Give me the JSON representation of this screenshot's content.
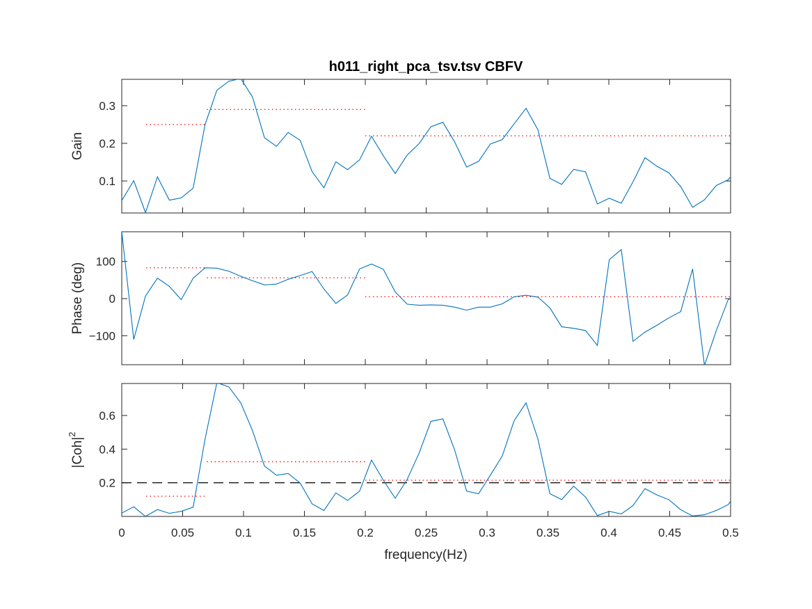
{
  "figure": {
    "title": "h011_right_pca_tsv.tsv CBFV",
    "xlabel": "frequency(Hz)"
  },
  "colors": {
    "series": "#0072BD",
    "bands": "#FF0000",
    "threshold": "#000000",
    "axes": "#262626"
  },
  "chart_data": [
    {
      "type": "line",
      "ylabel": "Gain",
      "xlim": [
        0,
        0.5
      ],
      "ylim": [
        0.015,
        0.37
      ],
      "yticks": [
        0.1,
        0.2,
        0.3
      ],
      "ytick_labels": [
        "0.1",
        "0.2",
        "0.3"
      ],
      "show_xtick_labels": false,
      "x": [
        0,
        0.0098,
        0.0195,
        0.0293,
        0.0391,
        0.0488,
        0.0586,
        0.0684,
        0.0781,
        0.0879,
        0.0977,
        0.1074,
        0.1172,
        0.127,
        0.1367,
        0.1465,
        0.1563,
        0.166,
        0.1758,
        0.1855,
        0.1953,
        0.2051,
        0.2148,
        0.2246,
        0.2344,
        0.2441,
        0.2539,
        0.2637,
        0.2734,
        0.2832,
        0.293,
        0.3027,
        0.3125,
        0.3223,
        0.332,
        0.3418,
        0.3516,
        0.3613,
        0.3711,
        0.3809,
        0.3906,
        0.4004,
        0.4102,
        0.4199,
        0.4297,
        0.4395,
        0.4492,
        0.459,
        0.4688,
        0.4785,
        0.4883,
        0.498,
        0.5
      ],
      "y": [
        0.048,
        0.101,
        0.016,
        0.111,
        0.049,
        0.055,
        0.081,
        0.25,
        0.341,
        0.365,
        0.372,
        0.323,
        0.215,
        0.192,
        0.229,
        0.208,
        0.125,
        0.082,
        0.151,
        0.13,
        0.156,
        0.219,
        0.167,
        0.12,
        0.169,
        0.199,
        0.244,
        0.256,
        0.204,
        0.137,
        0.152,
        0.198,
        0.21,
        0.252,
        0.293,
        0.236,
        0.107,
        0.091,
        0.131,
        0.124,
        0.039,
        0.054,
        0.041,
        0.098,
        0.162,
        0.139,
        0.122,
        0.085,
        0.03,
        0.05,
        0.088,
        0.103,
        0.111
      ],
      "band_means": [
        {
          "x": [
            0.02,
            0.07
          ],
          "y": 0.25
        },
        {
          "x": [
            0.07,
            0.2
          ],
          "y": 0.29
        },
        {
          "x": [
            0.2,
            0.5
          ],
          "y": 0.22
        }
      ]
    },
    {
      "type": "line",
      "ylabel": "Phase (deg)",
      "xlim": [
        0,
        0.5
      ],
      "ylim": [
        -178,
        180
      ],
      "yticks": [
        -100,
        0,
        100
      ],
      "ytick_labels": [
        "−100",
        "0",
        "100"
      ],
      "show_xtick_labels": false,
      "x": [
        0,
        0.0098,
        0.0195,
        0.0293,
        0.0391,
        0.0488,
        0.0586,
        0.0684,
        0.0781,
        0.0879,
        0.0977,
        0.1074,
        0.1172,
        0.127,
        0.1367,
        0.1465,
        0.1563,
        0.166,
        0.1758,
        0.1855,
        0.1953,
        0.2051,
        0.2148,
        0.2246,
        0.2344,
        0.2441,
        0.2539,
        0.2637,
        0.2734,
        0.2832,
        0.293,
        0.3027,
        0.3125,
        0.3223,
        0.332,
        0.3418,
        0.3516,
        0.3613,
        0.3711,
        0.3809,
        0.3906,
        0.4004,
        0.4102,
        0.4199,
        0.4297,
        0.4395,
        0.4492,
        0.459,
        0.4688,
        0.4785,
        0.4883,
        0.498,
        0.5
      ],
      "y": [
        180,
        -110,
        7,
        55,
        33,
        -3,
        55,
        83,
        82,
        74,
        60,
        48,
        37,
        39,
        52,
        62,
        73,
        26,
        -13,
        10,
        80,
        93,
        79,
        18,
        -15,
        -18,
        -17,
        -18,
        -23,
        -31,
        -23,
        -23,
        -14,
        5,
        9,
        4,
        -25,
        -76,
        -80,
        -86,
        -126,
        105,
        132,
        -115,
        -90,
        -72,
        -52,
        -35,
        80,
        -180,
        -86,
        -3,
        0
      ],
      "band_means": [
        {
          "x": [
            0.02,
            0.07
          ],
          "y": 83
        },
        {
          "x": [
            0.07,
            0.2
          ],
          "y": 56
        },
        {
          "x": [
            0.2,
            0.5
          ],
          "y": 5
        }
      ]
    },
    {
      "type": "line",
      "ylabel": "|Coh|",
      "ylabel_superscript": "2",
      "xlim": [
        0,
        0.5
      ],
      "ylim": [
        0,
        0.79
      ],
      "yticks": [
        0.2,
        0.4,
        0.6
      ],
      "ytick_labels": [
        "0.2",
        "0.4",
        "0.6"
      ],
      "show_xtick_labels": true,
      "xticks": [
        0,
        0.05,
        0.1,
        0.15,
        0.2,
        0.25,
        0.3,
        0.35,
        0.4,
        0.45,
        0.5
      ],
      "xtick_labels": [
        "0",
        "0.05",
        "0.1",
        "0.15",
        "0.2",
        "0.25",
        "0.3",
        "0.35",
        "0.4",
        "0.45",
        "0.5"
      ],
      "x": [
        0,
        0.0098,
        0.0195,
        0.0293,
        0.0391,
        0.0488,
        0.0586,
        0.0684,
        0.0781,
        0.0879,
        0.0977,
        0.1074,
        0.1172,
        0.127,
        0.1367,
        0.1465,
        0.1563,
        0.166,
        0.1758,
        0.1855,
        0.1953,
        0.2051,
        0.2148,
        0.2246,
        0.2344,
        0.2441,
        0.2539,
        0.2637,
        0.2734,
        0.2832,
        0.293,
        0.3027,
        0.3125,
        0.3223,
        0.332,
        0.3418,
        0.3516,
        0.3613,
        0.3711,
        0.3809,
        0.3906,
        0.4004,
        0.4102,
        0.4199,
        0.4297,
        0.4395,
        0.4492,
        0.459,
        0.4688,
        0.4785,
        0.4883,
        0.498,
        0.5
      ],
      "y": [
        0.02,
        0.057,
        0.0,
        0.041,
        0.018,
        0.03,
        0.055,
        0.46,
        0.795,
        0.77,
        0.675,
        0.51,
        0.3,
        0.245,
        0.255,
        0.198,
        0.075,
        0.035,
        0.14,
        0.095,
        0.15,
        0.335,
        0.215,
        0.108,
        0.22,
        0.375,
        0.565,
        0.58,
        0.395,
        0.15,
        0.135,
        0.245,
        0.36,
        0.57,
        0.675,
        0.46,
        0.135,
        0.1,
        0.18,
        0.115,
        0.005,
        0.03,
        0.015,
        0.065,
        0.165,
        0.128,
        0.1,
        0.04,
        0.003,
        0.01,
        0.035,
        0.07,
        0.09
      ],
      "band_means": [
        {
          "x": [
            0.02,
            0.07
          ],
          "y": 0.12
        },
        {
          "x": [
            0.07,
            0.2
          ],
          "y": 0.325
        },
        {
          "x": [
            0.2,
            0.5
          ],
          "y": 0.215
        }
      ],
      "threshold": 0.2
    }
  ]
}
